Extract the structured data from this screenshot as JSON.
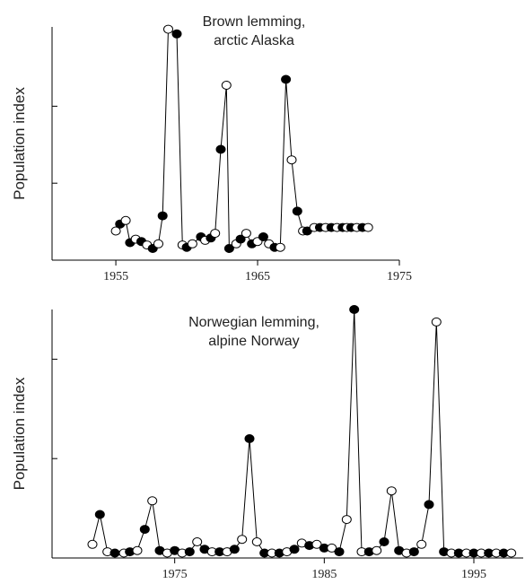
{
  "chart_data": [
    {
      "type": "scatter",
      "title": [
        "Brown lemming,",
        "arctic Alaska"
      ],
      "ylabel": "Population index",
      "xlabel": "",
      "xlim": [
        1950.5,
        1975
      ],
      "ylim": [
        0,
        100
      ],
      "xticks": [
        1955,
        1965,
        1975
      ],
      "yticks": [
        33,
        66
      ],
      "grid": false,
      "line_color": "#000000",
      "series": [
        {
          "x": [
            1955.0,
            1955.3,
            1955.7,
            1956.0,
            1956.4,
            1956.8,
            1957.2,
            1957.6,
            1958.0,
            1958.3,
            1958.7,
            1959.3,
            1959.7,
            1960.0,
            1960.4,
            1961.0,
            1961.3,
            1961.7,
            1962.0,
            1962.4,
            1962.8,
            1963.0,
            1963.5,
            1963.8,
            1964.2,
            1964.6,
            1965.0,
            1965.4,
            1965.8,
            1966.2,
            1966.6,
            1967.0,
            1967.4,
            1967.8,
            1968.2,
            1968.5,
            1969.0,
            1969.4,
            1969.8,
            1970.2,
            1970.6,
            1971.0,
            1971.3,
            1971.6,
            1972.0,
            1972.4,
            1972.8
          ],
          "y": [
            12.5,
            15.5,
            17.0,
            7.5,
            9.0,
            8.0,
            6.5,
            5.0,
            7.0,
            19.0,
            99.0,
            97.0,
            6.5,
            5.5,
            7.0,
            10.0,
            8.5,
            9.5,
            11.5,
            47.5,
            75.0,
            5.0,
            7.0,
            9.0,
            11.5,
            7.0,
            8.0,
            10.0,
            7.0,
            5.5,
            5.5,
            77.5,
            43.0,
            21.0,
            12.5,
            12.5,
            14.0,
            14.0,
            14.0,
            14.0,
            14.0,
            14.0,
            14.0,
            14.0,
            14.0,
            14.0,
            14.0
          ],
          "filled": [
            false,
            true,
            false,
            true,
            false,
            true,
            false,
            true,
            false,
            true,
            false,
            true,
            false,
            true,
            false,
            true,
            false,
            true,
            false,
            true,
            false,
            true,
            false,
            true,
            false,
            true,
            false,
            true,
            false,
            true,
            false,
            true,
            false,
            true,
            false,
            true,
            false,
            true,
            false,
            true,
            false,
            true,
            false,
            true,
            false,
            true,
            false
          ]
        }
      ]
    },
    {
      "type": "scatter",
      "title": [
        "Norwegian lemming,",
        "alpine Norway"
      ],
      "ylabel": "Population index",
      "xlabel": "",
      "xlim": [
        1966.8,
        1998.3
      ],
      "ylim": [
        0,
        100
      ],
      "xticks": [
        1975,
        1985,
        1995
      ],
      "yticks": [
        40,
        80
      ],
      "grid": false,
      "line_color": "#000000",
      "series": [
        {
          "x": [
            1969.5,
            1970.0,
            1970.5,
            1971.0,
            1971.6,
            1972.0,
            1972.5,
            1973.0,
            1973.5,
            1974.0,
            1974.5,
            1975.0,
            1975.5,
            1976.0,
            1976.5,
            1977.0,
            1977.5,
            1978.0,
            1978.5,
            1979.0,
            1979.5,
            1980.0,
            1980.5,
            1981.0,
            1981.5,
            1982.0,
            1982.5,
            1983.0,
            1983.5,
            1984.0,
            1984.5,
            1985.0,
            1985.5,
            1986.0,
            1986.5,
            1987.0,
            1987.5,
            1988.0,
            1988.5,
            1989.0,
            1989.5,
            1990.0,
            1990.5,
            1991.0,
            1991.5,
            1992.0,
            1992.5,
            1993.0,
            1993.5,
            1994.0,
            1994.5,
            1995.0,
            1995.5,
            1996.0,
            1996.5,
            1997.0,
            1997.5
          ],
          "y": [
            5.5,
            17.5,
            2.5,
            2.0,
            2.0,
            2.5,
            3.0,
            11.5,
            23.0,
            3.0,
            2.0,
            3.0,
            2.0,
            2.5,
            6.5,
            3.5,
            2.5,
            2.5,
            2.5,
            3.5,
            7.5,
            48.0,
            6.5,
            2.0,
            2.0,
            2.0,
            2.5,
            3.5,
            6.0,
            5.0,
            5.5,
            4.0,
            4.0,
            2.5,
            15.5,
            100.0,
            2.5,
            2.5,
            3.0,
            6.5,
            27.0,
            3.0,
            2.0,
            2.5,
            5.5,
            21.5,
            95.0,
            2.5,
            2.0,
            2.0,
            2.0,
            2.0,
            2.0,
            2.0,
            2.0,
            2.0,
            2.0
          ],
          "filled": [
            false,
            true,
            false,
            true,
            false,
            true,
            false,
            true,
            false,
            true,
            false,
            true,
            false,
            true,
            false,
            true,
            false,
            true,
            false,
            true,
            false,
            true,
            false,
            true,
            false,
            true,
            false,
            true,
            false,
            true,
            false,
            true,
            false,
            true,
            false,
            true,
            false,
            true,
            false,
            true,
            false,
            true,
            false,
            true,
            false,
            true,
            false,
            true,
            false,
            true,
            false,
            true,
            false,
            true,
            false,
            true,
            false
          ]
        }
      ]
    }
  ]
}
